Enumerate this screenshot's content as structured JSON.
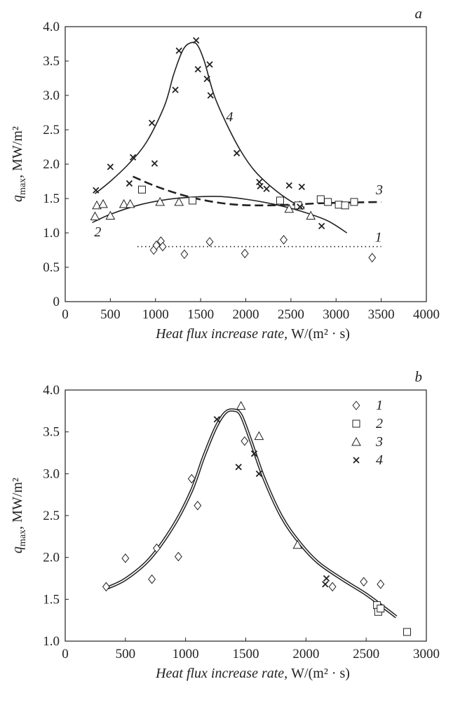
{
  "chart_data": [
    {
      "type": "scatter",
      "panel_label": "a",
      "xlabel_italic": "Heat flux increase rate,",
      "xlabel_unit": "W/(m² · s)",
      "ylabel_main": "q",
      "ylabel_sub": "max",
      "ylabel_unit": ", MW/m²",
      "xlim": [
        0,
        4000
      ],
      "ylim": [
        0,
        4.0
      ],
      "xticks": [
        "0",
        "500",
        "1000",
        "1500",
        "2000",
        "2500",
        "3000",
        "3500",
        "4000"
      ],
      "yticks": [
        "0",
        "0.5",
        "1.0",
        "1.5",
        "2.0",
        "2.5",
        "3.0",
        "3.5",
        "4.0"
      ],
      "grid": false,
      "series": [
        {
          "name": "1",
          "marker": "diamond",
          "line": "dotted",
          "points": [
            [
              980,
              0.75
            ],
            [
              1010,
              0.82
            ],
            [
              1060,
              0.88
            ],
            [
              1080,
              0.8
            ],
            [
              1320,
              0.69
            ],
            [
              1600,
              0.87
            ],
            [
              1990,
              0.7
            ],
            [
              2420,
              0.9
            ],
            [
              3400,
              0.64
            ]
          ],
          "curve": [
            [
              800,
              0.8
            ],
            [
              3500,
              0.8
            ]
          ]
        },
        {
          "name": "2",
          "marker": "triangle",
          "line": "solid",
          "points": [
            [
              330,
              1.24
            ],
            [
              350,
              1.4
            ],
            [
              420,
              1.42
            ],
            [
              500,
              1.25
            ],
            [
              650,
              1.42
            ],
            [
              720,
              1.42
            ],
            [
              1050,
              1.45
            ],
            [
              1260,
              1.45
            ],
            [
              2480,
              1.35
            ],
            [
              2600,
              1.4
            ],
            [
              2720,
              1.25
            ]
          ],
          "curve": [
            [
              300,
              1.15
            ],
            [
              500,
              1.27
            ],
            [
              800,
              1.4
            ],
            [
              1100,
              1.48
            ],
            [
              1400,
              1.52
            ],
            [
              1700,
              1.53
            ],
            [
              2000,
              1.49
            ],
            [
              2300,
              1.42
            ],
            [
              2600,
              1.32
            ],
            [
              2900,
              1.18
            ],
            [
              3120,
              1.0
            ]
          ]
        },
        {
          "name": "3",
          "marker": "square",
          "line": "dashed",
          "points": [
            [
              850,
              1.63
            ],
            [
              1410,
              1.47
            ],
            [
              2380,
              1.47
            ],
            [
              2580,
              1.4
            ],
            [
              2830,
              1.49
            ],
            [
              2910,
              1.45
            ],
            [
              3030,
              1.41
            ],
            [
              3100,
              1.4
            ],
            [
              3200,
              1.45
            ]
          ],
          "curve": [
            [
              750,
              1.82
            ],
            [
              1000,
              1.68
            ],
            [
              1300,
              1.55
            ],
            [
              1600,
              1.46
            ],
            [
              1900,
              1.41
            ],
            [
              2200,
              1.4
            ],
            [
              2500,
              1.41
            ],
            [
              2800,
              1.43
            ],
            [
              3100,
              1.44
            ],
            [
              3500,
              1.45
            ]
          ]
        },
        {
          "name": "4",
          "marker": "cross",
          "line": "solid",
          "points": [
            [
              340,
              1.62
            ],
            [
              500,
              1.96
            ],
            [
              710,
              1.72
            ],
            [
              750,
              2.1
            ],
            [
              960,
              2.6
            ],
            [
              990,
              2.01
            ],
            [
              1220,
              3.08
            ],
            [
              1260,
              3.65
            ],
            [
              1450,
              3.8
            ],
            [
              1470,
              3.38
            ],
            [
              1570,
              3.24
            ],
            [
              1600,
              3.45
            ],
            [
              1610,
              3.0
            ],
            [
              1900,
              2.16
            ],
            [
              2150,
              1.74
            ],
            [
              2160,
              1.68
            ],
            [
              2230,
              1.64
            ],
            [
              2480,
              1.69
            ],
            [
              2600,
              1.38
            ],
            [
              2620,
              1.67
            ],
            [
              2840,
              1.1
            ]
          ],
          "curve": [
            [
              330,
              1.57
            ],
            [
              500,
              1.75
            ],
            [
              700,
              2.0
            ],
            [
              900,
              2.32
            ],
            [
              1100,
              2.85
            ],
            [
              1200,
              3.3
            ],
            [
              1300,
              3.65
            ],
            [
              1380,
              3.76
            ],
            [
              1460,
              3.74
            ],
            [
              1540,
              3.5
            ],
            [
              1650,
              3.0
            ],
            [
              1800,
              2.55
            ],
            [
              1950,
              2.18
            ],
            [
              2100,
              1.9
            ],
            [
              2300,
              1.65
            ],
            [
              2500,
              1.46
            ],
            [
              2650,
              1.37
            ]
          ]
        }
      ],
      "curve_labels": [
        {
          "text": "1",
          "x": 3470,
          "y": 0.87
        },
        {
          "text": "2",
          "x": 360,
          "y": 0.95
        },
        {
          "text": "3",
          "x": 3480,
          "y": 1.56
        },
        {
          "text": "4",
          "x": 1820,
          "y": 2.62
        }
      ]
    },
    {
      "type": "scatter",
      "panel_label": "b",
      "xlabel_italic": "Heat flux increase rate,",
      "xlabel_unit": "W/(m² · s)",
      "ylabel_main": "q",
      "ylabel_sub": "max",
      "ylabel_unit": ", MW/m²",
      "xlim": [
        0,
        3000
      ],
      "ylim": [
        1.0,
        4.0
      ],
      "xticks": [
        "0",
        "500",
        "1000",
        "1500",
        "2000",
        "2500",
        "3000"
      ],
      "yticks": [
        "1.0",
        "1.5",
        "2.0",
        "2.5",
        "3.0",
        "3.5",
        "4.0"
      ],
      "grid": false,
      "legend_position": "top-right",
      "series": [
        {
          "name": "1",
          "marker": "diamond",
          "points": [
            [
              340,
              1.65
            ],
            [
              500,
              1.99
            ],
            [
              720,
              1.74
            ],
            [
              760,
              2.11
            ],
            [
              940,
              2.01
            ],
            [
              1050,
              2.94
            ],
            [
              1100,
              2.62
            ],
            [
              1490,
              3.39
            ],
            [
              2220,
              1.65
            ],
            [
              2480,
              1.71
            ],
            [
              2620,
              1.68
            ]
          ]
        },
        {
          "name": "2",
          "marker": "square",
          "points": [
            [
              2590,
              1.43
            ],
            [
              2600,
              1.35
            ],
            [
              2620,
              1.39
            ],
            [
              2840,
              1.11
            ]
          ]
        },
        {
          "name": "3",
          "marker": "triangle",
          "points": [
            [
              1460,
              3.81
            ],
            [
              1610,
              3.45
            ],
            [
              1930,
              2.15
            ]
          ]
        },
        {
          "name": "4",
          "marker": "cross",
          "points": [
            [
              1260,
              3.65
            ],
            [
              1440,
              3.08
            ],
            [
              1570,
              3.24
            ],
            [
              1610,
              3.0
            ],
            [
              2160,
              1.68
            ],
            [
              2170,
              1.75
            ]
          ]
        }
      ],
      "fit_curve": [
        [
          340,
          1.63
        ],
        [
          500,
          1.74
        ],
        [
          700,
          1.98
        ],
        [
          900,
          2.38
        ],
        [
          1050,
          2.8
        ],
        [
          1150,
          3.2
        ],
        [
          1250,
          3.55
        ],
        [
          1330,
          3.73
        ],
        [
          1400,
          3.76
        ],
        [
          1460,
          3.7
        ],
        [
          1540,
          3.4
        ],
        [
          1650,
          2.95
        ],
        [
          1800,
          2.48
        ],
        [
          1950,
          2.17
        ],
        [
          2100,
          1.94
        ],
        [
          2300,
          1.74
        ],
        [
          2500,
          1.56
        ],
        [
          2650,
          1.4
        ],
        [
          2750,
          1.29
        ]
      ]
    }
  ]
}
